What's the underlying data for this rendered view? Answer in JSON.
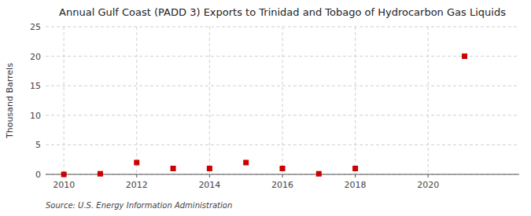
{
  "chart_data": {
    "type": "scatter",
    "title": "Annual Gulf Coast (PADD 3) Exports to Trinidad and Tobago of Hydrocarbon Gas Liquids",
    "ylabel": "Thousand Barrels",
    "source": "Source: U.S. Energy Information Administration",
    "x": [
      2010,
      2011,
      2012,
      2013,
      2014,
      2015,
      2016,
      2017,
      2018,
      2021
    ],
    "values": [
      0,
      0.1,
      2,
      1,
      1,
      2,
      1,
      0.1,
      1,
      20
    ],
    "color": "#cc0000",
    "marker": "square",
    "xlim": [
      2009.5,
      2022.5
    ],
    "ylim": [
      0,
      25
    ],
    "xticks": [
      2010,
      2012,
      2014,
      2016,
      2018,
      2020
    ],
    "yticks": [
      0,
      5,
      10,
      15,
      20,
      25
    ],
    "grid": true
  }
}
